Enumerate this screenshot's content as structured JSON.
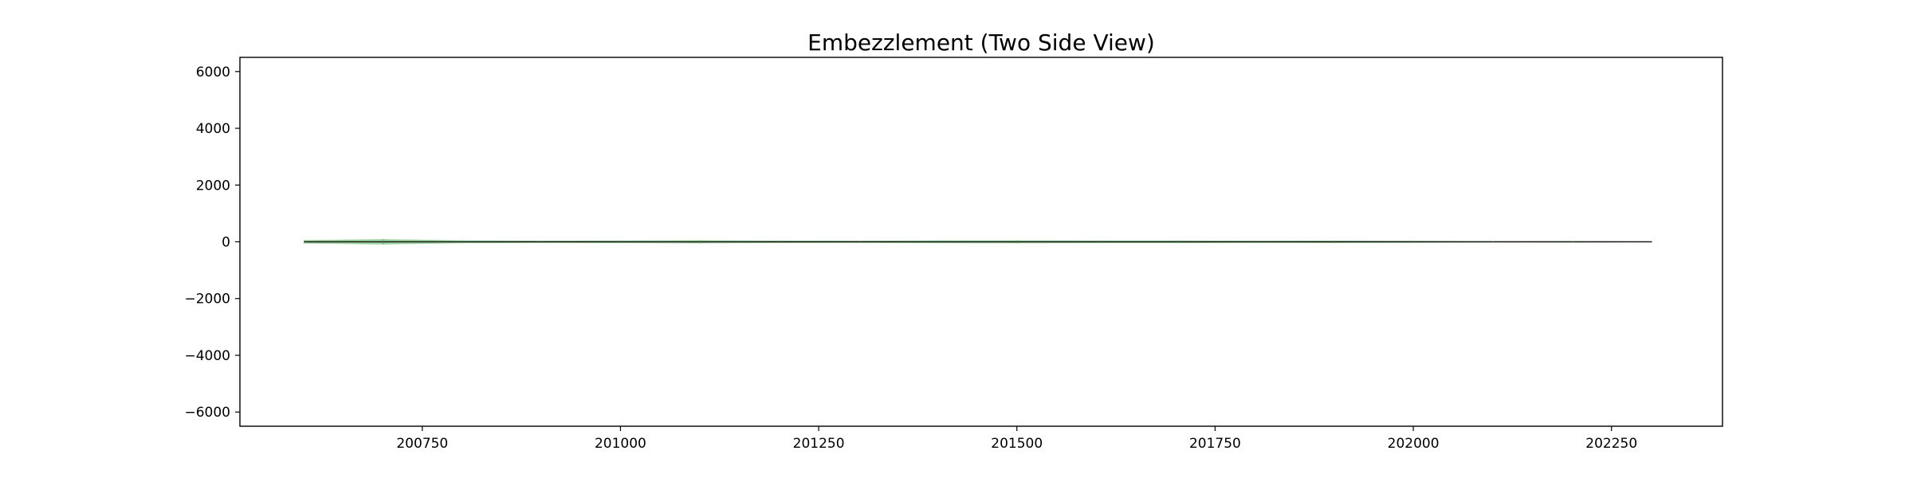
{
  "chart_data": {
    "type": "area",
    "title": "Embezzlement (Two Side View)",
    "xlabel": "",
    "ylabel": "",
    "xlim": [
      200520,
      202390
    ],
    "ylim": [
      -6500,
      6500
    ],
    "x_ticks": [
      200750,
      201000,
      201250,
      201500,
      201750,
      202000,
      202250
    ],
    "y_ticks": [
      -6000,
      -4000,
      -2000,
      0,
      2000,
      4000,
      6000
    ],
    "x_tick_labels": [
      "200750",
      "201000",
      "201250",
      "201500",
      "201750",
      "202000",
      "202250"
    ],
    "y_tick_labels": [
      "−6000",
      "−4000",
      "−2000",
      "0",
      "2000",
      "4000",
      "6000"
    ],
    "grid": false,
    "legend": "none",
    "colors": {
      "band_fill": "#2ca02c",
      "line": "#1a1a1a",
      "axes": "#000000"
    },
    "series": [
      {
        "x": [
          200601,
          200701,
          200801,
          200901,
          201001,
          201101,
          201201,
          201301,
          201401,
          201501,
          201601,
          201701,
          201801,
          201901,
          202001,
          202101,
          202201,
          202301
        ],
        "upper": [
          60,
          95,
          50,
          40,
          45,
          55,
          42,
          38,
          48,
          52,
          44,
          46,
          40,
          43,
          35,
          20,
          25,
          10
        ],
        "lower": [
          -60,
          -95,
          -50,
          -40,
          -45,
          -55,
          -42,
          -38,
          -48,
          -52,
          -44,
          -46,
          -40,
          -43,
          -35,
          -20,
          -25,
          -10
        ]
      }
    ]
  }
}
